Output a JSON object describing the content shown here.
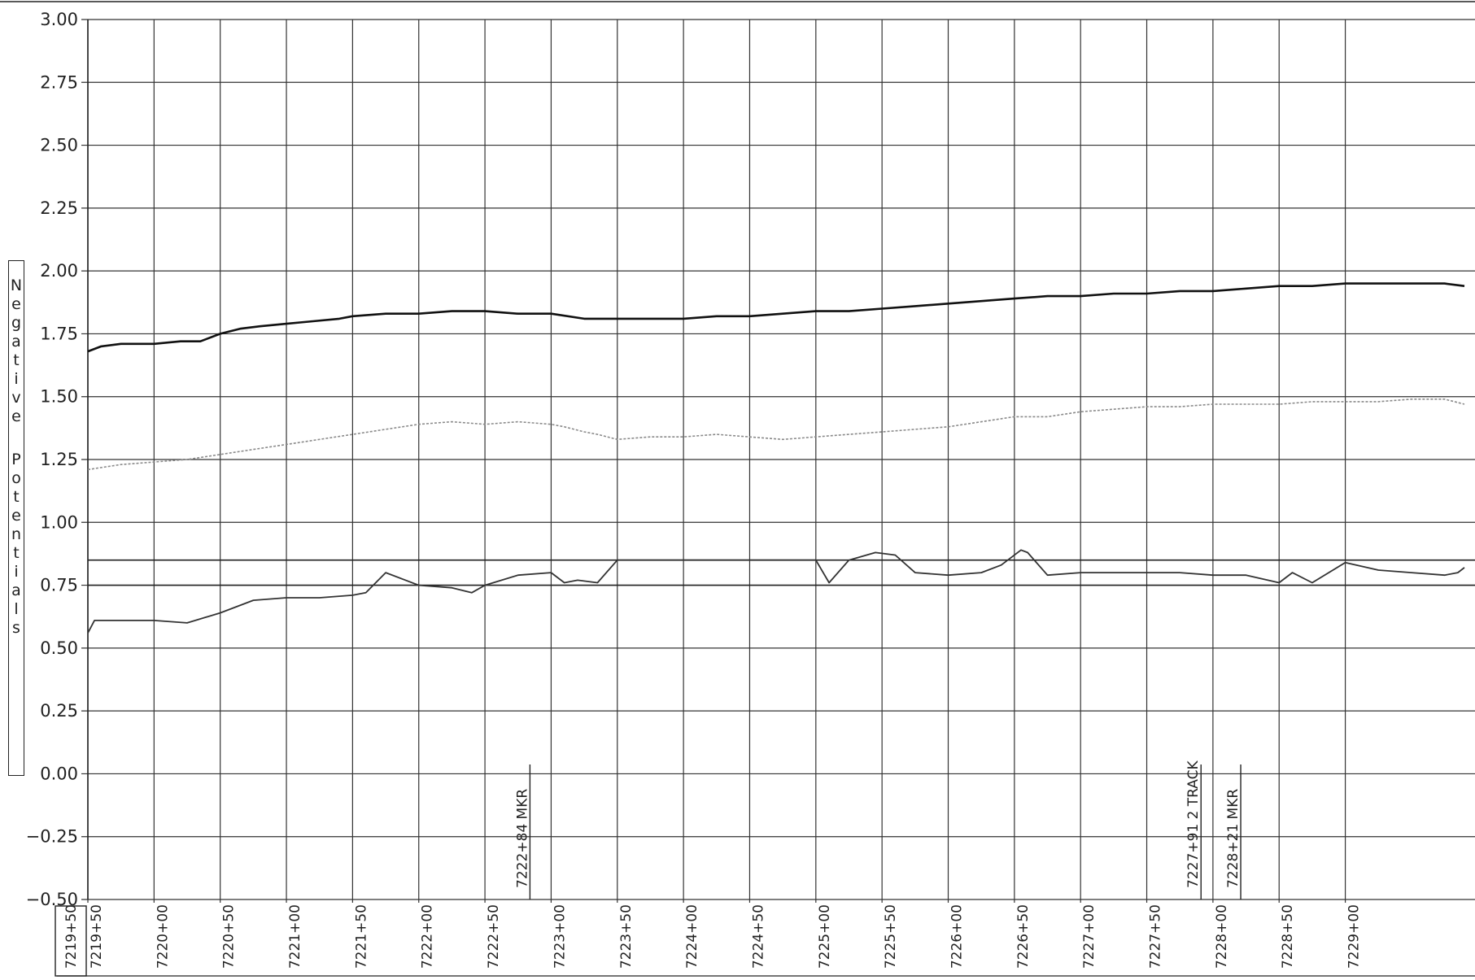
{
  "chart_data": {
    "type": "line",
    "xlabel": "",
    "ylabel": "Negative Potentials",
    "ylim": [
      -0.5,
      3.0
    ],
    "yticks": [
      "3.00",
      "2.75",
      "2.50",
      "2.25",
      "2.00",
      "1.75",
      "1.50",
      "1.25",
      "1.00",
      "0.75",
      "0.50",
      "0.25",
      "0.00",
      "-0.25",
      "-0.50"
    ],
    "xlim": [
      721950,
      722990
    ],
    "x_start_label": "7219+50",
    "xticks": [
      "7219+50",
      "7220+00",
      "7220+50",
      "7221+00",
      "7221+50",
      "7222+00",
      "7222+50",
      "7223+00",
      "7223+50",
      "7224+00",
      "7224+50",
      "7225+00",
      "7225+50",
      "7226+00",
      "7226+50",
      "7227+00",
      "7227+50",
      "7228+00",
      "7228+50",
      "7229+00"
    ],
    "reference_lines": [
      0.85,
      0.75
    ],
    "grid": true,
    "annotations": [
      {
        "label": "7222+84  MKR",
        "x": 722284
      },
      {
        "label": "7227+91  2 TRACK",
        "x": 722791
      },
      {
        "label": "7228+21  MKR",
        "x": 722821
      }
    ],
    "series": [
      {
        "style": "solid-dark",
        "x": [
          721950,
          721960,
          721975,
          722000,
          722020,
          722035,
          722050,
          722065,
          722080,
          722100,
          722120,
          722140,
          722150,
          722175,
          722200,
          722225,
          722250,
          722275,
          722300,
          722325,
          722350,
          722375,
          722400,
          722425,
          722450,
          722475,
          722500,
          722525,
          722550,
          722575,
          722600,
          722625,
          722650,
          722675,
          722700,
          722725,
          722750,
          722775,
          722800,
          722825,
          722850,
          722875,
          722900,
          722925,
          722950,
          722975,
          722990
        ],
        "y": [
          1.68,
          1.7,
          1.71,
          1.71,
          1.72,
          1.72,
          1.75,
          1.77,
          1.78,
          1.79,
          1.8,
          1.81,
          1.82,
          1.83,
          1.83,
          1.84,
          1.84,
          1.83,
          1.83,
          1.81,
          1.81,
          1.81,
          1.81,
          1.82,
          1.82,
          1.83,
          1.84,
          1.84,
          1.85,
          1.86,
          1.87,
          1.88,
          1.89,
          1.9,
          1.9,
          1.91,
          1.91,
          1.92,
          1.92,
          1.93,
          1.94,
          1.94,
          1.95,
          1.95,
          1.95,
          1.95,
          1.94
        ]
      },
      {
        "style": "dotted-gray",
        "x": [
          721950,
          721975,
          722000,
          722025,
          722050,
          722075,
          722100,
          722125,
          722150,
          722175,
          722200,
          722225,
          722250,
          722275,
          722300,
          722310,
          722325,
          722335,
          722350,
          722375,
          722400,
          722425,
          722450,
          722475,
          722500,
          722525,
          722550,
          722575,
          722600,
          722625,
          722650,
          722675,
          722700,
          722725,
          722750,
          722775,
          722800,
          722825,
          722850,
          722875,
          722900,
          722925,
          722950,
          722975,
          722990
        ],
        "y": [
          1.21,
          1.23,
          1.24,
          1.25,
          1.27,
          1.29,
          1.31,
          1.33,
          1.35,
          1.37,
          1.39,
          1.4,
          1.39,
          1.4,
          1.39,
          1.38,
          1.36,
          1.35,
          1.33,
          1.34,
          1.34,
          1.35,
          1.34,
          1.33,
          1.34,
          1.35,
          1.36,
          1.37,
          1.38,
          1.4,
          1.42,
          1.42,
          1.44,
          1.45,
          1.46,
          1.46,
          1.47,
          1.47,
          1.47,
          1.48,
          1.48,
          1.48,
          1.49,
          1.49,
          1.47
        ]
      },
      {
        "style": "solid-medium",
        "x": [
          721950,
          721955,
          721975,
          722000,
          722025,
          722050,
          722075,
          722100,
          722125,
          722150,
          722160,
          722175,
          722200,
          722225,
          722240,
          722250,
          722275,
          722300,
          722310,
          722320,
          722335,
          722350,
          722375,
          722400,
          722425,
          722450,
          722475,
          722500,
          722510,
          722525,
          722545,
          722560,
          722575,
          722600,
          722625,
          722640,
          722655,
          722660,
          722675,
          722700,
          722725,
          722750,
          722775,
          722800,
          722825,
          722850,
          722860,
          722875,
          722900,
          722925,
          722950,
          722975,
          722985,
          722990
        ],
        "y": [
          0.56,
          0.61,
          0.61,
          0.61,
          0.6,
          0.64,
          0.69,
          0.7,
          0.7,
          0.71,
          0.72,
          0.8,
          0.75,
          0.74,
          0.72,
          0.75,
          0.79,
          0.8,
          0.76,
          0.77,
          0.76,
          0.85,
          0.85,
          0.85,
          0.85,
          0.85,
          0.85,
          0.85,
          0.76,
          0.85,
          0.88,
          0.87,
          0.8,
          0.79,
          0.8,
          0.83,
          0.89,
          0.88,
          0.79,
          0.8,
          0.8,
          0.8,
          0.8,
          0.79,
          0.79,
          0.76,
          0.8,
          0.76,
          0.84,
          0.81,
          0.8,
          0.79,
          0.8,
          0.82
        ]
      }
    ]
  }
}
